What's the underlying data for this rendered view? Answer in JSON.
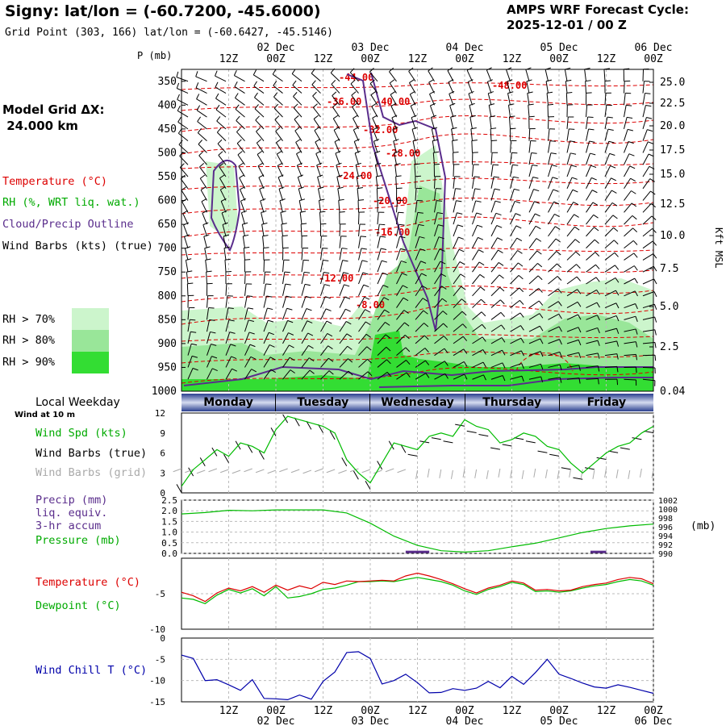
{
  "header": {
    "title": "Signy:  lat/lon = (-60.7200, -45.6000)",
    "grid_point": "Grid Point (303, 166) lat/lon = (-60.6427, -45.5146)",
    "cycle_line1": "AMPS WRF Forecast Cycle:",
    "cycle_line2": "2025-12-01 / 00  Z"
  },
  "model": {
    "label": "Model Grid ΔX:",
    "value": " 24.000 km"
  },
  "legend": {
    "temperature": "Temperature (°C)",
    "rh": "RH (%, WRT liq. wat.)",
    "cloud": "Cloud/Precip Outline",
    "wind": "Wind Barbs (kts) (true)",
    "rh70": "RH > 70%",
    "rh80": "RH > 80%",
    "rh90": "RH > 90%",
    "p_unit": "P (mb)",
    "height_unit": "Kft MSL"
  },
  "colors": {
    "temperature": "#dd0000",
    "rh70": "#ccf5cc",
    "rh80": "#99e699",
    "rh90": "#33dd33",
    "cloud": "#5a2d8c",
    "wind_chill": "#0000aa",
    "dewpoint": "#00bb00",
    "weekday_band": "#2a3f8f"
  },
  "time_axis": {
    "ticks": [
      "12Z",
      "00Z",
      "12Z",
      "00Z",
      "12Z",
      "00Z",
      "12Z",
      "00Z",
      "12Z",
      "00Z"
    ],
    "dates": [
      {
        "label": "02 Dec",
        "tick": 1
      },
      {
        "label": "03 Dec",
        "tick": 3
      },
      {
        "label": "04 Dec",
        "tick": 5
      },
      {
        "label": "05 Dec",
        "tick": 7
      },
      {
        "label": "06 Dec",
        "tick": 9
      }
    ]
  },
  "weekday": {
    "label": "Local Weekday",
    "wind_note": "Wind at 10 m",
    "days": [
      "Monday",
      "Tuesday",
      "Wednesday",
      "Thursday",
      "Friday"
    ]
  },
  "wind_panel": {
    "label1": "Wind Spd (kts)",
    "label2": "Wind Barbs (true)",
    "label3": "Wind Barbs (grid)"
  },
  "precip_panel": {
    "label1": "Precip (mm)",
    "label2": "liq. equiv.",
    "label3": "3-hr accum",
    "label4": "Pressure (mb)",
    "unit": "(mb)"
  },
  "temp_panel": {
    "label1": "Temperature (°C)",
    "label2": "Dewpoint (°C)"
  },
  "chill_panel": {
    "label1": "Wind Chill T (°C)"
  },
  "chart_data": [
    {
      "type": "heatmap",
      "name": "upper_air_cross_section",
      "y_pressure_ticks": [
        350,
        400,
        450,
        500,
        550,
        600,
        650,
        700,
        750,
        800,
        850,
        900,
        950,
        1000
      ],
      "y_height_ticks": [
        "25.0",
        "22.5",
        "20.0",
        "17.5",
        "15.0",
        "12.5",
        "10.0",
        "7.5",
        "5.0",
        "2.5",
        "0.04"
      ],
      "temperature_contour_labels": [
        "-44.00",
        "-36.00",
        "-40.00",
        "-48.00",
        "-32.00",
        "-28.00",
        "-24.00",
        "-20.00",
        "-16.00",
        "-12.00",
        "-8.00"
      ]
    },
    {
      "type": "line",
      "name": "wind_speed",
      "ylim": [
        0,
        12
      ],
      "yticks": [
        "0",
        "3",
        "6",
        "9",
        "12"
      ],
      "x_hours": [
        0,
        3,
        6,
        9,
        12,
        15,
        18,
        21,
        24,
        27,
        30,
        33,
        36,
        39,
        42,
        45,
        48,
        51,
        54,
        57,
        60,
        63,
        66,
        69,
        72,
        75,
        78,
        81,
        84,
        87,
        90,
        93,
        96,
        99,
        102,
        105,
        108,
        111,
        114,
        117,
        120
      ],
      "values": [
        1.0,
        3.5,
        5.0,
        6.5,
        5.5,
        7.5,
        7.0,
        6.0,
        9.5,
        11.5,
        11.0,
        10.5,
        10.0,
        9.0,
        5.0,
        3.0,
        1.5,
        4.5,
        7.5,
        7.0,
        6.5,
        8.5,
        9.0,
        8.5,
        11.0,
        10.0,
        9.5,
        7.5,
        8.0,
        9.0,
        8.5,
        7.0,
        6.5,
        4.5,
        3.0,
        4.5,
        6.0,
        7.0,
        7.5,
        9.0,
        10.0
      ]
    },
    {
      "type": "line",
      "name": "precip_pressure",
      "left_ylim": [
        0,
        2.5
      ],
      "left_yticks": [
        "0.0",
        "0.5",
        "1.0",
        "1.5",
        "2.0",
        "2.5"
      ],
      "right_yticks": [
        "990",
        "992",
        "994",
        "996",
        "998",
        "1000",
        "1002"
      ],
      "pressure_x_hours": [
        0,
        6,
        12,
        18,
        24,
        30,
        36,
        42,
        48,
        54,
        60,
        66,
        72,
        78,
        84,
        90,
        96,
        102,
        108,
        114,
        120
      ],
      "pressure_values": [
        998.9,
        999.2,
        999.7,
        999.6,
        999.8,
        999.8,
        999.8,
        999.1,
        996.8,
        993.9,
        991.8,
        990.6,
        990.3,
        990.6,
        991.5,
        992.3,
        993.5,
        994.7,
        995.6,
        996.2,
        996.6
      ],
      "precip_hours": [
        [
          57,
          63
        ],
        [
          104,
          108
        ]
      ],
      "precip_values": [
        0.05,
        0.05
      ]
    },
    {
      "type": "line",
      "name": "temperature_dewpoint",
      "ylim": [
        -10,
        0
      ],
      "yticks": [
        "-5",
        "-10"
      ],
      "x_hours": [
        0,
        3,
        6,
        9,
        12,
        15,
        18,
        21,
        24,
        27,
        30,
        33,
        36,
        39,
        42,
        45,
        48,
        51,
        54,
        57,
        60,
        63,
        66,
        69,
        72,
        75,
        78,
        81,
        84,
        87,
        90,
        93,
        96,
        99,
        102,
        105,
        108,
        111,
        114,
        117,
        120
      ],
      "temperature": [
        -4.8,
        -5.3,
        -6.1,
        -4.9,
        -4.2,
        -4.6,
        -4.0,
        -4.8,
        -3.8,
        -4.5,
        -3.9,
        -4.3,
        -3.4,
        -3.7,
        -3.2,
        -3.3,
        -3.2,
        -3.1,
        -3.2,
        -2.5,
        -2.1,
        -2.5,
        -3.0,
        -3.6,
        -4.3,
        -4.9,
        -4.2,
        -3.8,
        -3.2,
        -3.5,
        -4.5,
        -4.4,
        -4.6,
        -4.5,
        -4.0,
        -3.7,
        -3.5,
        -3.0,
        -2.7,
        -2.9,
        -3.6
      ],
      "dewpoint": [
        -5.6,
        -5.8,
        -6.4,
        -5.2,
        -4.4,
        -4.9,
        -4.3,
        -5.3,
        -4.0,
        -5.6,
        -5.4,
        -5.0,
        -4.4,
        -4.2,
        -3.8,
        -3.3,
        -3.3,
        -3.2,
        -3.3,
        -3.0,
        -2.7,
        -3.0,
        -3.3,
        -3.8,
        -4.6,
        -5.1,
        -4.4,
        -4.0,
        -3.4,
        -3.7,
        -4.7,
        -4.6,
        -4.8,
        -4.6,
        -4.2,
        -3.9,
        -3.7,
        -3.3,
        -3.0,
        -3.2,
        -3.8
      ]
    },
    {
      "type": "line",
      "name": "wind_chill",
      "ylim": [
        -15,
        0
      ],
      "yticks": [
        "0",
        "-5",
        "-10",
        "-15"
      ],
      "x_hours": [
        0,
        3,
        6,
        9,
        12,
        15,
        18,
        21,
        24,
        27,
        30,
        33,
        36,
        39,
        42,
        45,
        48,
        51,
        54,
        57,
        60,
        63,
        66,
        69,
        72,
        75,
        78,
        81,
        84,
        87,
        90,
        93,
        96,
        99,
        102,
        105,
        108,
        111,
        114,
        117,
        120
      ],
      "values": [
        -4.0,
        -4.8,
        -10.0,
        -9.8,
        -11.0,
        -12.3,
        -9.8,
        -14.2,
        -14.3,
        -14.5,
        -13.4,
        -14.4,
        -10.2,
        -8.0,
        -3.4,
        -3.2,
        -4.8,
        -10.8,
        -10.0,
        -8.5,
        -10.5,
        -12.9,
        -12.8,
        -11.9,
        -12.3,
        -11.8,
        -10.2,
        -11.7,
        -9.0,
        -10.9,
        -8.1,
        -5.0,
        -8.5,
        -9.5,
        -10.6,
        -11.5,
        -11.8,
        -11.0,
        -11.6,
        -12.3,
        -13.0
      ]
    }
  ]
}
